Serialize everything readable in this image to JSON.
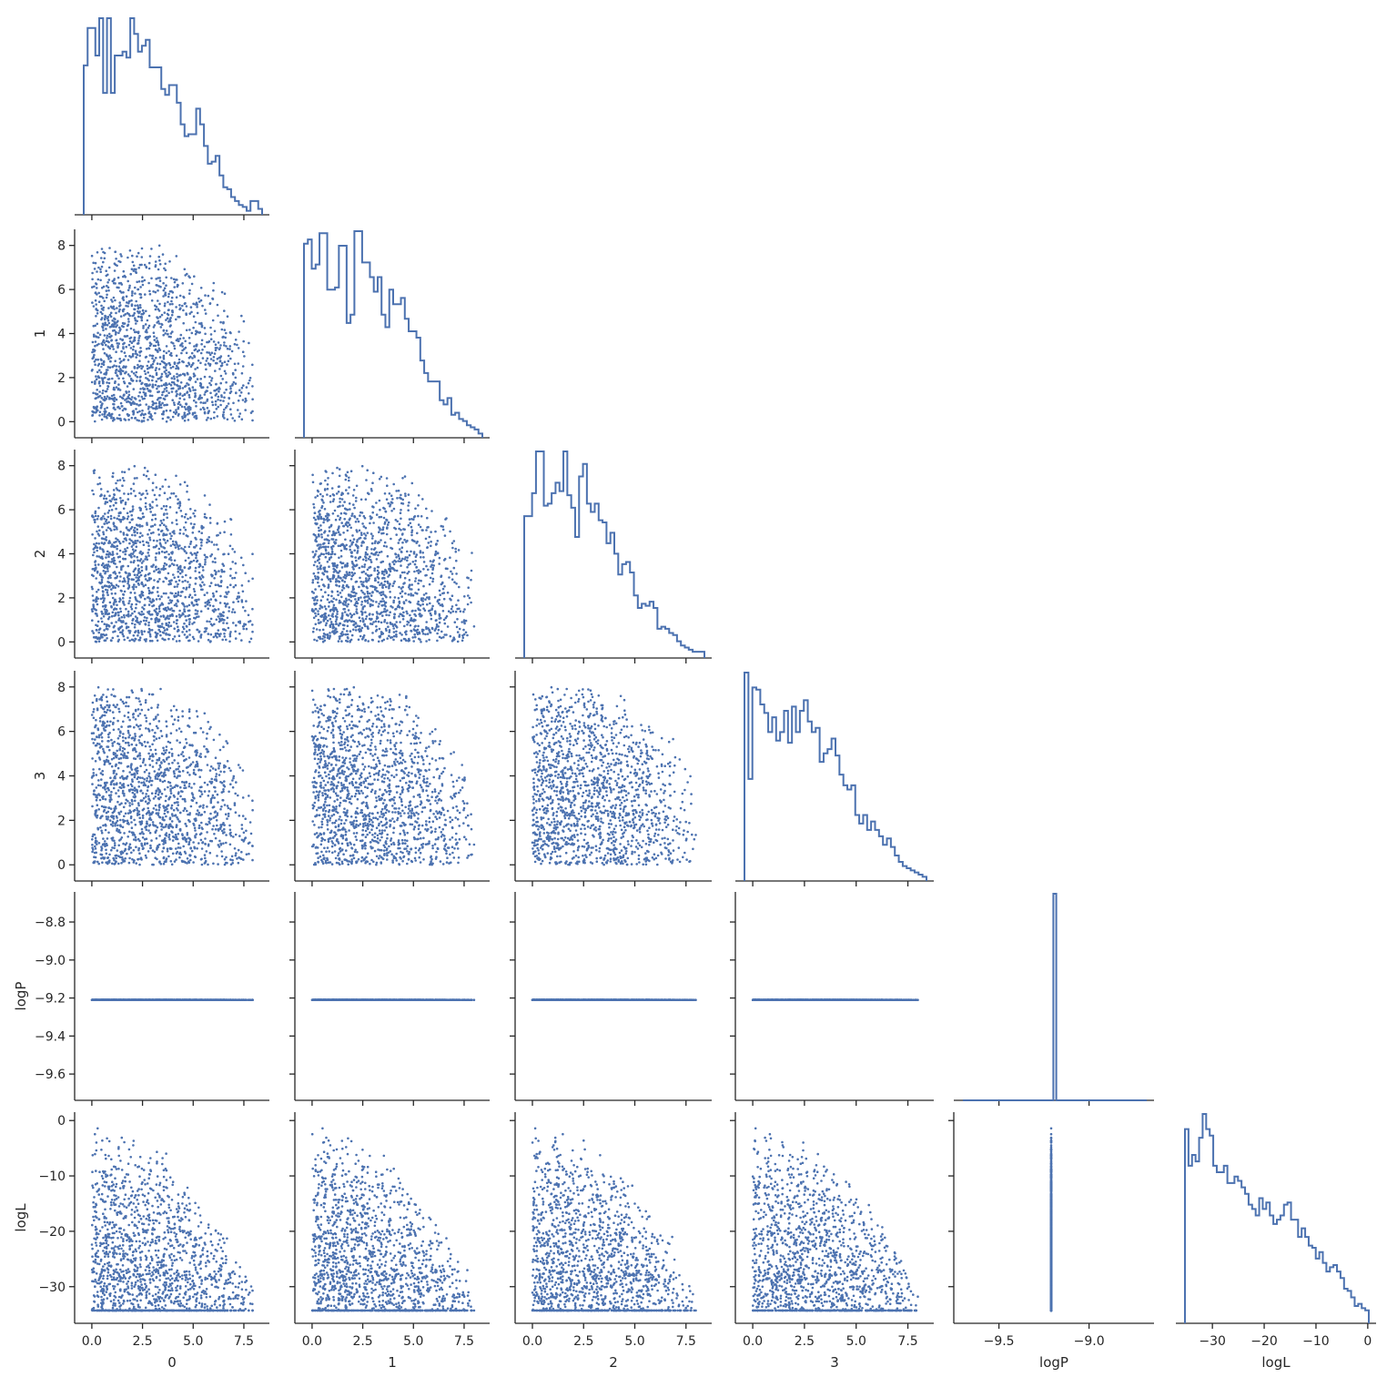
{
  "chart_data": {
    "type": "scatter",
    "kind": "corner pair plot (histograms on diagonal, scatter below)",
    "variables": [
      "0",
      "1",
      "2",
      "3",
      "logP",
      "logL"
    ],
    "axis_labels": [
      "0",
      "1",
      "2",
      "3",
      "logP",
      "logL"
    ],
    "ranges": {
      "0": [
        -0.4,
        8.4
      ],
      "1": [
        -0.4,
        8.4
      ],
      "2": [
        -0.4,
        8.4
      ],
      "3": [
        -0.4,
        8.4
      ],
      "logP": [
        -9.7,
        -8.68
      ],
      "logL": [
        -35.3,
        0.2
      ]
    },
    "ticks": {
      "0": {
        "values": [
          0,
          2.5,
          5,
          7.5
        ],
        "labels": [
          "0.0",
          "2.5",
          "5.0",
          "7.5"
        ]
      },
      "1": {
        "values": [
          0,
          2.5,
          5,
          7.5
        ],
        "labels": [
          "0.0",
          "2.5",
          "5.0",
          "7.5"
        ]
      },
      "2": {
        "values": [
          0,
          2.5,
          5,
          7.5
        ],
        "labels": [
          "0.0",
          "2.5",
          "5.0",
          "7.5"
        ]
      },
      "3": {
        "values": [
          0,
          2.5,
          5,
          7.5
        ],
        "labels": [
          "0.0",
          "2.5",
          "5.0",
          "7.5"
        ]
      },
      "logP": {
        "values": [
          -9.5,
          -9.0
        ],
        "labels": [
          "−9.5",
          "−9.0"
        ]
      },
      "logL": {
        "values": [
          -30,
          -20,
          -10,
          0
        ],
        "labels": [
          "−30",
          "−20",
          "−10",
          "0"
        ]
      }
    },
    "row_ticks": {
      "1": {
        "values": [
          0,
          2,
          4,
          6,
          8
        ],
        "labels": [
          "0",
          "2",
          "4",
          "6",
          "8"
        ]
      },
      "2": {
        "values": [
          0,
          2,
          4,
          6,
          8
        ],
        "labels": [
          "0",
          "2",
          "4",
          "6",
          "8"
        ]
      },
      "3": {
        "values": [
          0,
          2,
          4,
          6,
          8
        ],
        "labels": [
          "0",
          "2",
          "4",
          "6",
          "8"
        ]
      },
      "logP": {
        "values": [
          -8.8,
          -9.0,
          -9.2,
          -9.4,
          -9.6
        ],
        "labels": [
          "−8.8",
          "−9.0",
          "−9.2",
          "−9.4",
          "−9.6"
        ]
      },
      "logL": {
        "values": [
          0,
          -10,
          -20,
          -30
        ],
        "labels": [
          "0",
          "−10",
          "−20",
          "−30"
        ]
      }
    },
    "logP_value": -9.21,
    "n_samples_approx": 1500,
    "histograms": {
      "0": [
        76,
        95,
        95,
        81,
        100,
        62,
        100,
        62,
        81,
        81,
        83,
        80,
        100,
        92,
        83,
        86,
        89,
        75,
        75,
        75,
        64,
        61,
        66,
        66,
        57,
        46,
        40,
        41,
        41,
        54,
        46,
        35,
        26,
        27,
        30,
        20,
        14,
        13,
        9,
        7,
        5,
        4,
        2,
        7,
        7,
        3
      ],
      "1": [
        93,
        95,
        81,
        83,
        98,
        98,
        71,
        71,
        72,
        92,
        92,
        55,
        59,
        99,
        99,
        84,
        84,
        77,
        70,
        77,
        59,
        53,
        71,
        64,
        64,
        67,
        57,
        51,
        51,
        48,
        37,
        31,
        27,
        27,
        27,
        18,
        16,
        19,
        11,
        12,
        9,
        8,
        6,
        5,
        4,
        2
      ],
      "2": [
        68,
        68,
        79,
        99,
        99,
        73,
        74,
        79,
        84,
        80,
        99,
        78,
        72,
        58,
        87,
        93,
        74,
        70,
        74,
        66,
        65,
        55,
        60,
        50,
        40,
        45,
        46,
        41,
        30,
        24,
        26,
        25,
        27,
        24,
        14,
        15,
        14,
        12,
        11,
        8,
        6,
        5,
        4,
        3,
        3,
        3
      ],
      "3": [
        98,
        48,
        91,
        90,
        83,
        79,
        70,
        77,
        66,
        70,
        80,
        65,
        82,
        70,
        80,
        85,
        75,
        70,
        72,
        56,
        60,
        62,
        67,
        59,
        50,
        45,
        43,
        45,
        31,
        27,
        31,
        24,
        28,
        24,
        21,
        17,
        20,
        16,
        12,
        9,
        7,
        6,
        5,
        4,
        3,
        2
      ],
      "logP": [
        0,
        0,
        0,
        0,
        0,
        0,
        0,
        0,
        0,
        0,
        0,
        0,
        0,
        0,
        0,
        0,
        0,
        0,
        0,
        0,
        0,
        0,
        0,
        0,
        0,
        0,
        0,
        0,
        0,
        0,
        0,
        100,
        0,
        0,
        0,
        0,
        0,
        0,
        0,
        0,
        0,
        0,
        0,
        0,
        0,
        0,
        0,
        0,
        0,
        0,
        0,
        0,
        0,
        0,
        0,
        0,
        0,
        0,
        0,
        0,
        0,
        0,
        0
      ],
      "logL": [
        90,
        73,
        78,
        75,
        86,
        97,
        90,
        87,
        73,
        70,
        70,
        73,
        65,
        65,
        68,
        66,
        63,
        60,
        55,
        53,
        50,
        58,
        53,
        56,
        50,
        46,
        48,
        50,
        55,
        56,
        48,
        48,
        40,
        44,
        40,
        36,
        35,
        30,
        33,
        28,
        24,
        26,
        27,
        24,
        21,
        16,
        15,
        12,
        8,
        9,
        7,
        6
      ]
    }
  }
}
